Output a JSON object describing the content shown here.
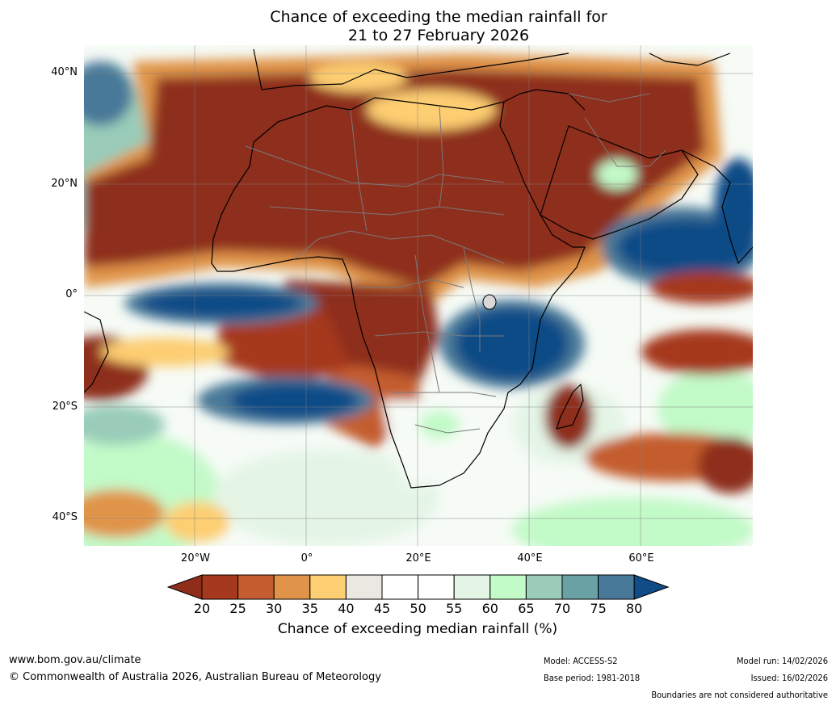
{
  "title": {
    "line1": "Chance of exceeding the median rainfall for",
    "line2": "21 to 27 February 2026"
  },
  "map": {
    "lat_labels": [
      "40°N",
      "20°N",
      "0°",
      "20°S",
      "40°S"
    ],
    "lon_labels": [
      "20°W",
      "0°",
      "20°E",
      "40°E",
      "60°E"
    ]
  },
  "colorbar": {
    "ticks": [
      "20",
      "25",
      "30",
      "35",
      "40",
      "45",
      "50",
      "55",
      "60",
      "65",
      "70",
      "75",
      "80"
    ],
    "colors": [
      "#8e2e1a",
      "#a6391d",
      "#c45d2f",
      "#e0944a",
      "#fdce72",
      "#ebe7e1",
      "#ffffff",
      "#ffffff",
      "#e4f5e6",
      "#c2fac8",
      "#9accb9",
      "#6aa1a4",
      "#497999",
      "#104c87"
    ],
    "label": "Chance of exceeding median rainfall (%)"
  },
  "footer": {
    "website": "www.bom.gov.au/climate",
    "copyright": "© Commonwealth of Australia 2026, Australian Bureau of Meteorology",
    "model": "Model: ACCESS-S2",
    "base_period": "Base period: 1981-2018",
    "model_run": "Model run: 14/02/2026",
    "issued": "Issued: 16/02/2026",
    "disclaimer": "Boundaries are not considered authoritative"
  }
}
